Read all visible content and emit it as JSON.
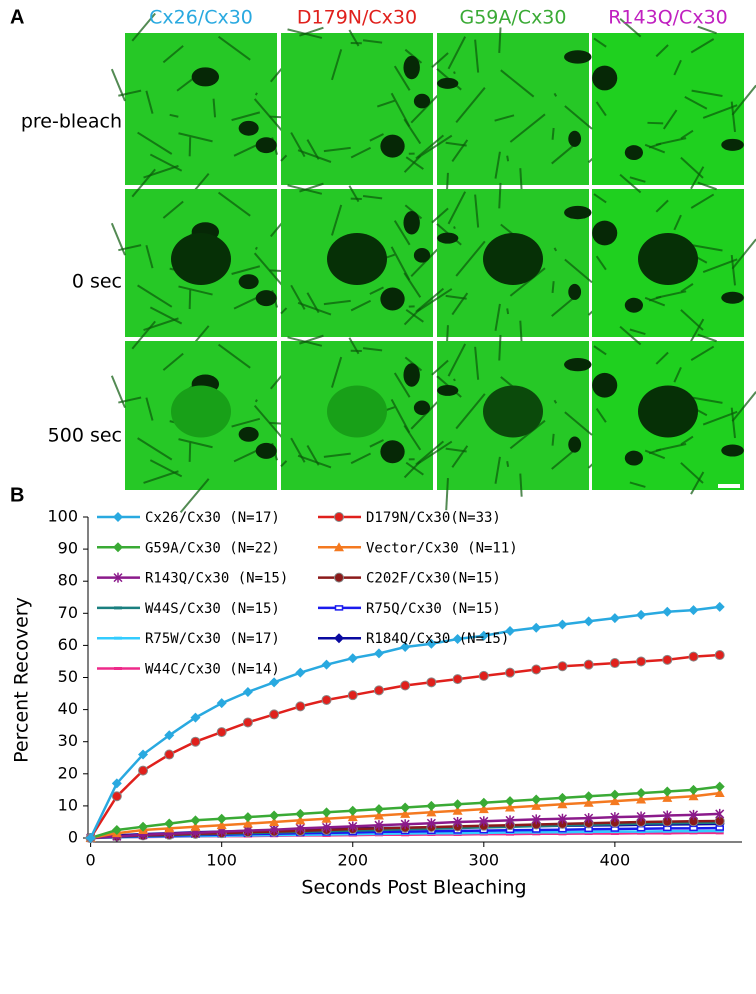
{
  "panel_a": {
    "label": "A",
    "columns": [
      {
        "text": "Cx26/Cx30",
        "color": "#29a9e0"
      },
      {
        "text": "D179N/Cx30",
        "color": "#e0201c"
      },
      {
        "text": "G59A/Cx30",
        "color": "#3aaa35"
      },
      {
        "text": "R143Q/Cx30",
        "color": "#c020c0"
      }
    ],
    "rows": [
      "pre-bleach",
      "0 sec",
      "500 sec"
    ]
  },
  "chart_data": {
    "type": "line",
    "panel_label": "B",
    "xlabel": "Seconds Post Bleaching",
    "ylabel": "Percent Recovery",
    "x": [
      0,
      20,
      40,
      60,
      80,
      100,
      120,
      140,
      160,
      180,
      200,
      220,
      240,
      260,
      280,
      300,
      320,
      340,
      360,
      380,
      400,
      420,
      440,
      460,
      480
    ],
    "xlim": [
      -2,
      497
    ],
    "xticks": [
      0,
      100,
      200,
      300,
      400
    ],
    "ylim": [
      0,
      100
    ],
    "yticks": [
      0,
      10,
      20,
      30,
      40,
      50,
      60,
      70,
      80,
      90,
      100
    ],
    "series": [
      {
        "name": "Cx26/Cx30 (N=17)",
        "color": "#29a9e0",
        "marker": "diamond",
        "values": [
          0,
          17,
          26,
          32,
          37.5,
          42,
          45.5,
          48.5,
          51.5,
          54,
          56,
          57.5,
          59.5,
          60.5,
          62,
          63,
          64.5,
          65.5,
          66.5,
          67.5,
          68.5,
          69.5,
          70.5,
          71,
          72
        ]
      },
      {
        "name": "D179N/Cx30(N=33)",
        "color": "#e0201c",
        "marker": "circle",
        "values": [
          0,
          13,
          21,
          26,
          30,
          33,
          36,
          38.5,
          41,
          43,
          44.5,
          46,
          47.5,
          48.5,
          49.5,
          50.5,
          51.5,
          52.5,
          53.5,
          54,
          54.5,
          55,
          55.5,
          56.5,
          57
        ]
      },
      {
        "name": "G59A/Cx30 (N=22)",
        "color": "#3aaa35",
        "marker": "diamond",
        "values": [
          0,
          2.5,
          3.5,
          4.5,
          5.5,
          6,
          6.5,
          7,
          7.5,
          8,
          8.5,
          9,
          9.5,
          10,
          10.5,
          11,
          11.5,
          12,
          12.5,
          13,
          13.5,
          14,
          14.5,
          15,
          16
        ]
      },
      {
        "name": "Vector/Cx30 (N=11)",
        "color": "#f47920",
        "marker": "triangle",
        "values": [
          0,
          1.5,
          2.5,
          3,
          3.5,
          4,
          4.5,
          5,
          5.5,
          6,
          6.5,
          7,
          7.5,
          8,
          8.5,
          9,
          9.5,
          10,
          10.5,
          11,
          11.5,
          12,
          12.5,
          13,
          14
        ]
      },
      {
        "name": "R143Q/Cx30 (N=15)",
        "color": "#8b1a8b",
        "marker": "star",
        "values": [
          0,
          0.5,
          1,
          1.3,
          1.6,
          2,
          2.3,
          2.6,
          3,
          3.3,
          3.6,
          4,
          4.3,
          4.6,
          5,
          5.2,
          5.5,
          5.8,
          6,
          6.2,
          6.5,
          6.7,
          7,
          7.2,
          7.5
        ]
      },
      {
        "name": "C202F/Cx30(N=15)",
        "color": "#8b1a1a",
        "marker": "circle",
        "values": [
          0,
          0.5,
          0.8,
          1,
          1.3,
          1.5,
          1.8,
          2,
          2.2,
          2.5,
          2.8,
          3,
          3.2,
          3.4,
          3.6,
          3.8,
          4,
          4.2,
          4.4,
          4.6,
          4.8,
          5,
          5.1,
          5.2,
          5.3
        ]
      },
      {
        "name": "W44S/Cx30 (N=15)",
        "color": "#1a7f7f",
        "marker": "dash",
        "values": [
          0,
          0.4,
          0.7,
          0.9,
          1.1,
          1.3,
          1.5,
          1.7,
          1.9,
          2.1,
          2.3,
          2.5,
          2.7,
          2.9,
          3.1,
          3.3,
          3.5,
          3.7,
          3.9,
          4.1,
          4.3,
          4.5,
          4.6,
          4.7,
          4.8
        ]
      },
      {
        "name": "R75Q/Cx30 (N=15)",
        "color": "#1a1aee",
        "marker": "square",
        "values": [
          0,
          0.3,
          0.5,
          0.7,
          0.9,
          1,
          1.2,
          1.3,
          1.5,
          1.6,
          1.7,
          1.9,
          2,
          2.1,
          2.2,
          2.3,
          2.4,
          2.5,
          2.6,
          2.7,
          2.8,
          2.9,
          3,
          3,
          3.1
        ]
      },
      {
        "name": "R75W/Cx30 (N=17)",
        "color": "#33ccff",
        "marker": "dash",
        "values": [
          0,
          0.2,
          0.4,
          0.5,
          0.6,
          0.7,
          0.8,
          0.9,
          1,
          1.1,
          1.2,
          1.3,
          1.4,
          1.5,
          1.5,
          1.6,
          1.7,
          1.8,
          1.8,
          1.9,
          2,
          2,
          2.1,
          2.1,
          2.2
        ]
      },
      {
        "name": "R184Q/Cx30 (N=15)",
        "color": "#0a0aa0",
        "marker": "diamond",
        "values": [
          0,
          0.8,
          1.2,
          1.5,
          1.8,
          2,
          2.2,
          2.4,
          2.6,
          2.8,
          3,
          3.1,
          3.2,
          3.3,
          3.4,
          3.5,
          3.6,
          3.7,
          3.8,
          3.9,
          4,
          4.1,
          4.2,
          4.3,
          4.4
        ]
      },
      {
        "name": "W44C/Cx30 (N=14)",
        "color": "#ee2a8a",
        "marker": "dash",
        "values": [
          0,
          0.2,
          0.3,
          0.4,
          0.5,
          0.6,
          0.6,
          0.7,
          0.8,
          0.8,
          0.9,
          1,
          1,
          1.1,
          1.1,
          1.2,
          1.2,
          1.3,
          1.3,
          1.4,
          1.4,
          1.5,
          1.5,
          1.6,
          1.6
        ]
      }
    ]
  }
}
